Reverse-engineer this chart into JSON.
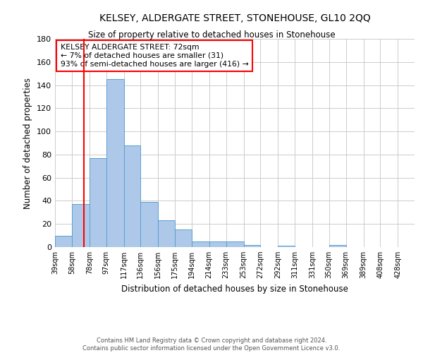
{
  "title": "KELSEY, ALDERGATE STREET, STONEHOUSE, GL10 2QQ",
  "subtitle": "Size of property relative to detached houses in Stonehouse",
  "xlabel": "Distribution of detached houses by size in Stonehouse",
  "ylabel": "Number of detached properties",
  "bar_labels": [
    "39sqm",
    "58sqm",
    "78sqm",
    "97sqm",
    "117sqm",
    "136sqm",
    "156sqm",
    "175sqm",
    "194sqm",
    "214sqm",
    "233sqm",
    "253sqm",
    "272sqm",
    "292sqm",
    "311sqm",
    "331sqm",
    "350sqm",
    "369sqm",
    "389sqm",
    "408sqm",
    "428sqm"
  ],
  "bar_values": [
    10,
    37,
    77,
    145,
    88,
    39,
    23,
    15,
    5,
    5,
    5,
    2,
    0,
    1,
    0,
    0,
    2,
    0,
    0,
    0,
    0
  ],
  "bar_color": "#adc8e8",
  "bar_edge_color": "#5a9fd4",
  "red_line_x": 72,
  "bin_edges": [
    39,
    58,
    78,
    97,
    117,
    136,
    156,
    175,
    194,
    214,
    233,
    253,
    272,
    292,
    311,
    331,
    350,
    369,
    389,
    408,
    428,
    447
  ],
  "ylim": [
    0,
    180
  ],
  "yticks": [
    0,
    20,
    40,
    60,
    80,
    100,
    120,
    140,
    160,
    180
  ],
  "annotation_title": "KELSEY ALDERGATE STREET: 72sqm",
  "annotation_line1": "← 7% of detached houses are smaller (31)",
  "annotation_line2": "93% of semi-detached houses are larger (416) →",
  "footer1": "Contains HM Land Registry data © Crown copyright and database right 2024.",
  "footer2": "Contains public sector information licensed under the Open Government Licence v3.0.",
  "background_color": "#ffffff",
  "grid_color": "#cccccc"
}
